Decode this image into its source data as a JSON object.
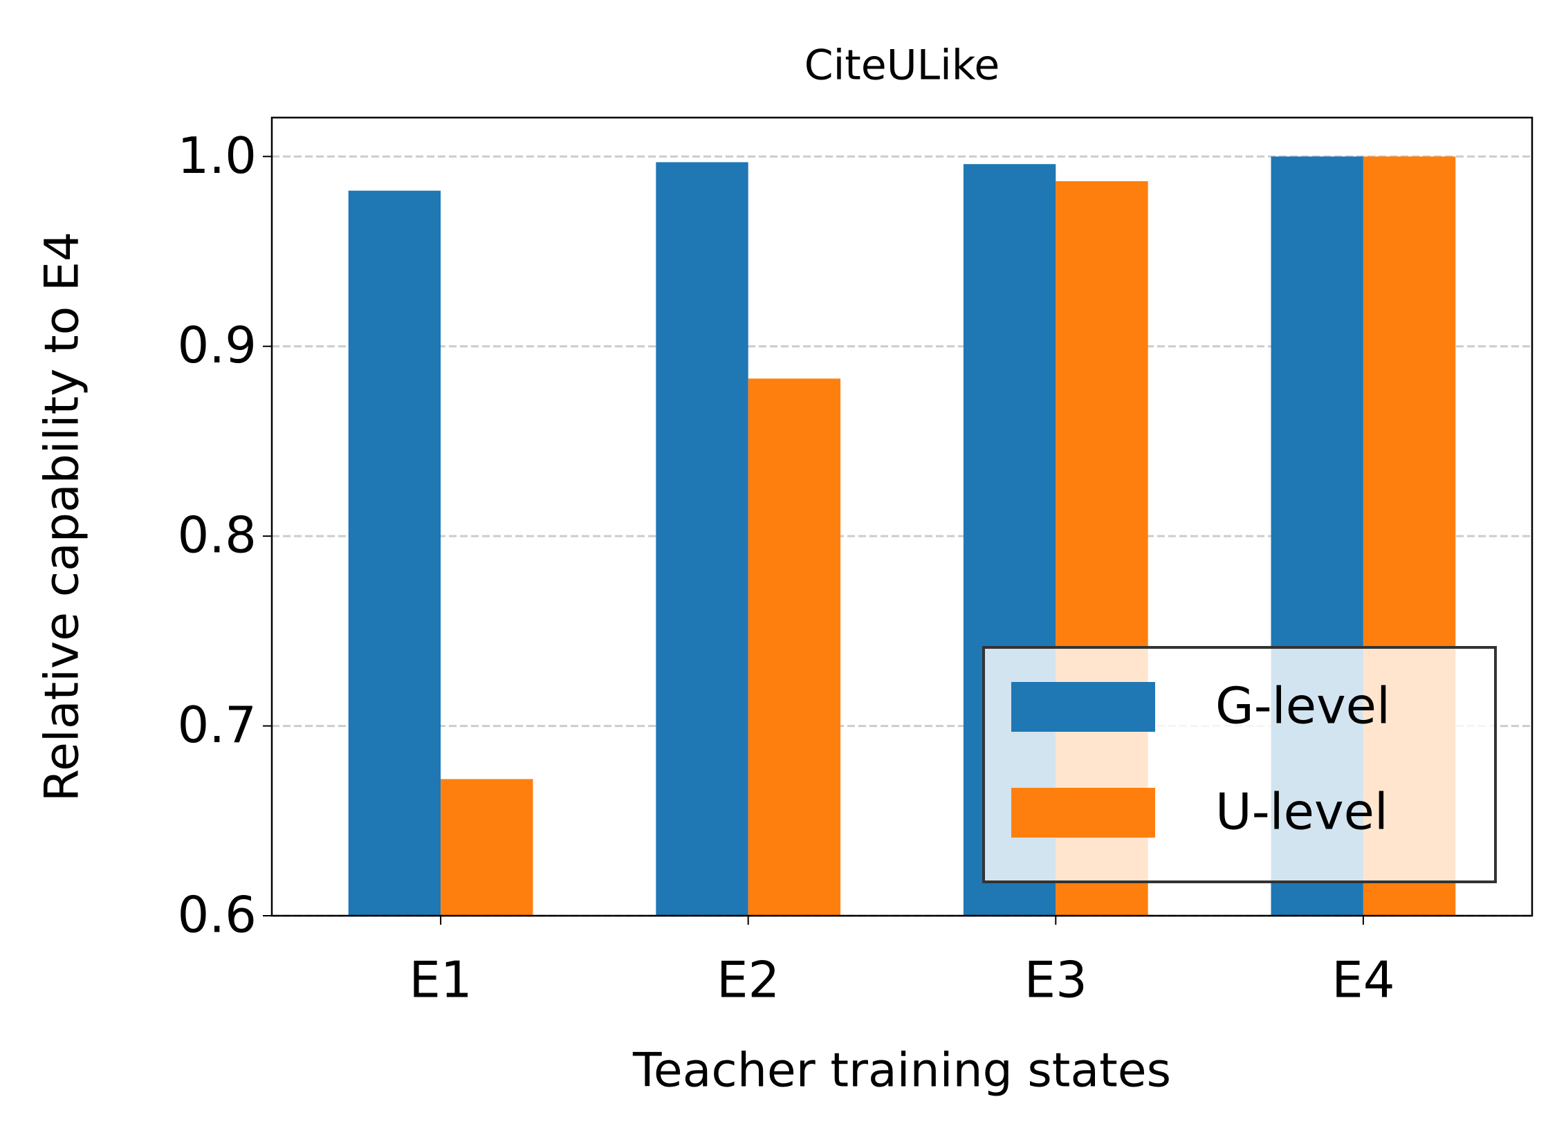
{
  "chart_data": {
    "type": "bar",
    "title": "CiteULike",
    "x_label": "Teacher training states",
    "y_label": "Relative capability to E4",
    "categories": [
      "E1",
      "E2",
      "E3",
      "E4"
    ],
    "series": [
      {
        "name": "G-level",
        "color": "#1f77b4",
        "values": [
          0.982,
          0.997,
          0.996,
          1.0
        ]
      },
      {
        "name": "U-level",
        "color": "#ff7f0e",
        "values": [
          0.672,
          0.883,
          0.987,
          1.0
        ]
      }
    ],
    "ylim": [
      0.6,
      1.0205
    ],
    "yticks": [
      0.6,
      0.7,
      0.8,
      0.9,
      {
        "value": 1,
        "label": "1.0"
      }
    ],
    "grid": true,
    "legend": "lower right"
  }
}
